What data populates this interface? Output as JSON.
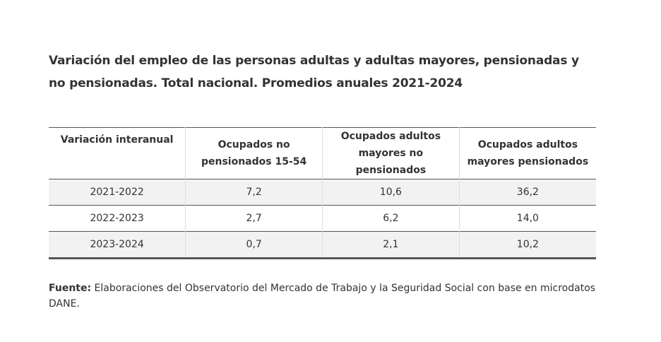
{
  "header": {
    "title": "Variación del empleo de las personas adultas y adultas mayores, pensionadas y no pensionadas. Total nacional. Promedios anuales 2021-2024"
  },
  "table": {
    "columns": [
      "Variación interanual",
      "Ocupados no pensionados 15-54",
      "Ocupados adultos mayores no pensionados",
      "Ocupados adultos mayores pensionados"
    ],
    "rows": [
      [
        "2021-2022",
        "7,2",
        "10,6",
        "36,2"
      ],
      [
        "2022-2023",
        "2,7",
        "6,2",
        "14,0"
      ],
      [
        "2023-2024",
        "0,7",
        "2,1",
        "10,2"
      ]
    ]
  },
  "source": {
    "label": "Fuente:",
    "text": "Elaboraciones del Observatorio del Mercado de Trabajo y la Seguridad Social con base en microdatos DANE."
  }
}
